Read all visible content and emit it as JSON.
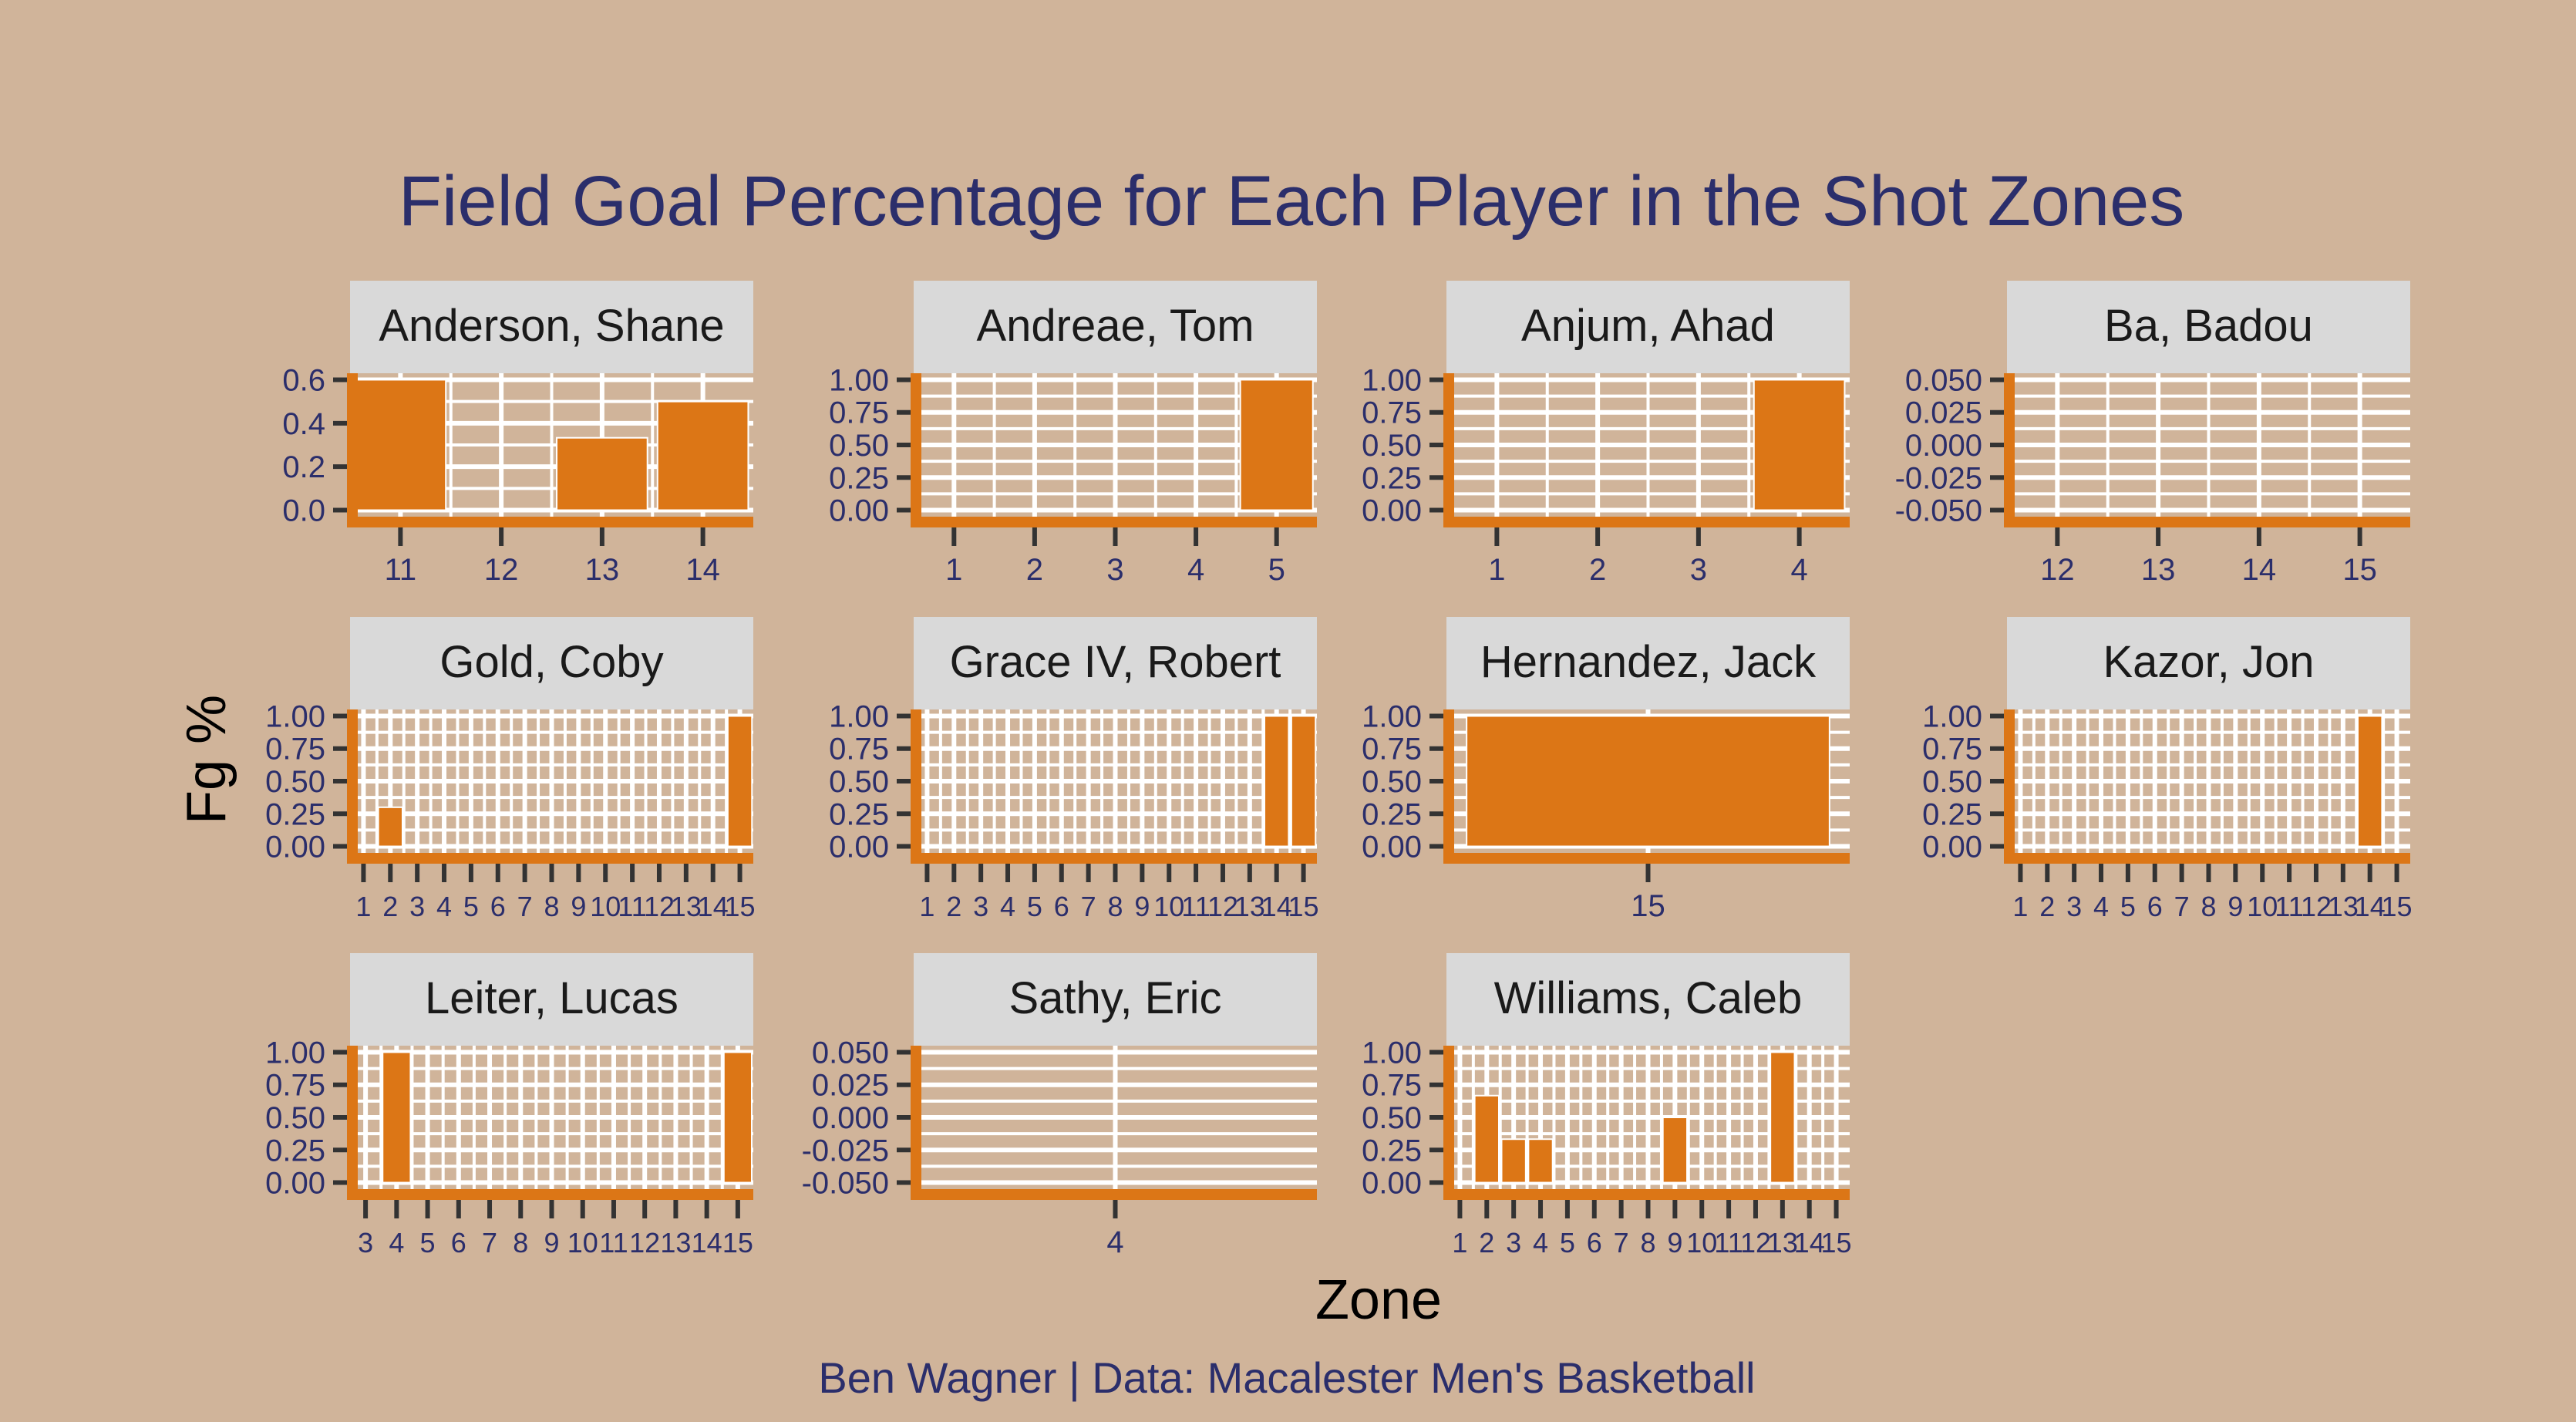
{
  "colors": {
    "background": "#d0b49a",
    "bar": "#dc7616",
    "axis_accent": "#dc7616",
    "grid": "#ffffff",
    "strip": "#d9d9d9",
    "title": "#2b2e6b",
    "tick_text": "#2b2e6b",
    "tick_mark": "#333333"
  },
  "chart_data": {
    "type": "bar",
    "title": "Field Goal Percentage for Each Player in the Shot Zones",
    "xlabel": "Zone",
    "ylabel": "Fg %",
    "caption": "Ben Wagner | Data: Macalester Men's Basketball",
    "facet_scales": "free",
    "facet_columns": 4,
    "panels": [
      {
        "player": "Anderson, Shane",
        "zones": [
          "11",
          "12",
          "13",
          "14"
        ],
        "values": [
          0.6,
          null,
          0.333,
          0.5
        ],
        "yticks": [
          "0.0",
          "0.2",
          "0.4",
          "0.6"
        ],
        "ylim": [
          -0.03,
          0.63
        ]
      },
      {
        "player": "Andreae, Tom",
        "zones": [
          "1",
          "2",
          "3",
          "4",
          "5"
        ],
        "values": [
          null,
          null,
          null,
          null,
          1.0
        ],
        "yticks": [
          "0.00",
          "0.25",
          "0.50",
          "0.75",
          "1.00"
        ],
        "ylim": [
          -0.05,
          1.05
        ]
      },
      {
        "player": "Anjum, Ahad",
        "zones": [
          "1",
          "2",
          "3",
          "4"
        ],
        "values": [
          null,
          null,
          null,
          1.0
        ],
        "yticks": [
          "0.00",
          "0.25",
          "0.50",
          "0.75",
          "1.00"
        ],
        "ylim": [
          -0.05,
          1.05
        ]
      },
      {
        "player": "Ba, Badou",
        "zones": [
          "12",
          "13",
          "14",
          "15"
        ],
        "values": [
          null,
          null,
          null,
          null
        ],
        "yticks": [
          "-0.050",
          "-0.025",
          "0.000",
          "0.025",
          "0.050"
        ],
        "ylim": [
          -0.055,
          0.055
        ]
      },
      {
        "player": "Gold, Coby",
        "zones": [
          "1",
          "2",
          "3",
          "4",
          "5",
          "6",
          "7",
          "8",
          "9",
          "10",
          "11",
          "12",
          "13",
          "14",
          "15"
        ],
        "values": [
          null,
          0.3,
          null,
          null,
          null,
          null,
          null,
          null,
          null,
          null,
          null,
          null,
          null,
          null,
          1.0
        ],
        "yticks": [
          "0.00",
          "0.25",
          "0.50",
          "0.75",
          "1.00"
        ],
        "ylim": [
          -0.05,
          1.05
        ]
      },
      {
        "player": "Grace IV, Robert",
        "zones": [
          "1",
          "2",
          "3",
          "4",
          "5",
          "6",
          "7",
          "8",
          "9",
          "10",
          "11",
          "12",
          "13",
          "14",
          "15"
        ],
        "values": [
          null,
          null,
          null,
          null,
          null,
          null,
          null,
          null,
          null,
          null,
          null,
          null,
          null,
          1.0,
          1.0
        ],
        "yticks": [
          "0.00",
          "0.25",
          "0.50",
          "0.75",
          "1.00"
        ],
        "ylim": [
          -0.05,
          1.05
        ]
      },
      {
        "player": "Hernandez, Jack",
        "zones": [
          "15"
        ],
        "values": [
          1.0
        ],
        "yticks": [
          "0.00",
          "0.25",
          "0.50",
          "0.75",
          "1.00"
        ],
        "ylim": [
          -0.05,
          1.05
        ]
      },
      {
        "player": "Kazor, Jon",
        "zones": [
          "1",
          "2",
          "3",
          "4",
          "5",
          "6",
          "7",
          "8",
          "9",
          "10",
          "11",
          "12",
          "13",
          "14",
          "15"
        ],
        "values": [
          null,
          null,
          null,
          null,
          null,
          null,
          null,
          null,
          null,
          null,
          null,
          null,
          null,
          1.0,
          null
        ],
        "yticks": [
          "0.00",
          "0.25",
          "0.50",
          "0.75",
          "1.00"
        ],
        "ylim": [
          -0.05,
          1.05
        ]
      },
      {
        "player": "Leiter, Lucas",
        "zones": [
          "3",
          "4",
          "5",
          "6",
          "7",
          "8",
          "9",
          "10",
          "11",
          "12",
          "13",
          "14",
          "15"
        ],
        "values": [
          null,
          1.0,
          null,
          null,
          null,
          null,
          null,
          null,
          null,
          null,
          null,
          null,
          1.0
        ],
        "yticks": [
          "0.00",
          "0.25",
          "0.50",
          "0.75",
          "1.00"
        ],
        "ylim": [
          -0.05,
          1.05
        ]
      },
      {
        "player": "Sathy, Eric",
        "zones": [
          "4"
        ],
        "values": [
          null
        ],
        "yticks": [
          "-0.050",
          "-0.025",
          "0.000",
          "0.025",
          "0.050"
        ],
        "ylim": [
          -0.055,
          0.055
        ]
      },
      {
        "player": "Williams, Caleb",
        "zones": [
          "1",
          "2",
          "3",
          "4",
          "5",
          "6",
          "7",
          "8",
          "9",
          "10",
          "11",
          "12",
          "13",
          "14",
          "15"
        ],
        "values": [
          null,
          0.667,
          0.333,
          0.333,
          null,
          null,
          null,
          null,
          0.5,
          null,
          null,
          null,
          1.0,
          null,
          null
        ],
        "yticks": [
          "0.00",
          "0.25",
          "0.50",
          "0.75",
          "1.00"
        ],
        "ylim": [
          -0.05,
          1.05
        ]
      }
    ]
  }
}
